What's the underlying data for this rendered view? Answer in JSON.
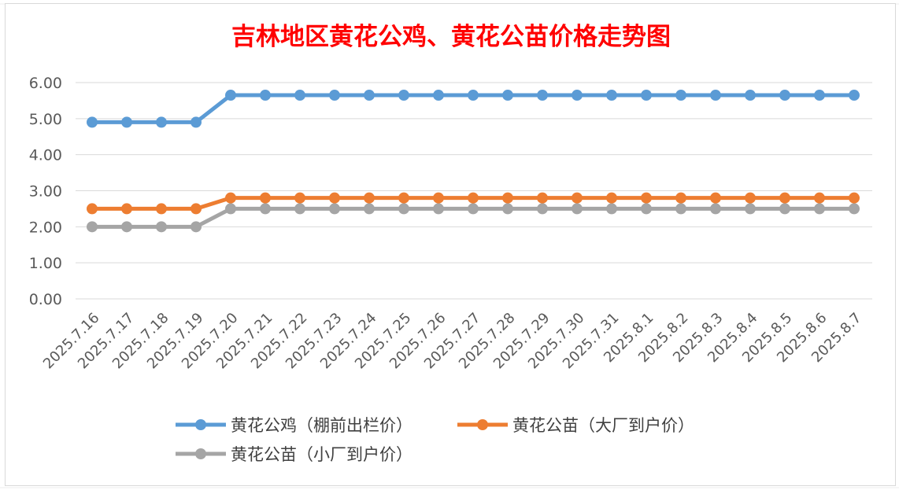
{
  "chart_data": {
    "type": "line",
    "title": "吉林地区黄花公鸡、黄花公苗价格走势图",
    "xlabel": "",
    "ylabel": "",
    "ylim": [
      0,
      6
    ],
    "yticks": [
      "0.00",
      "1.00",
      "2.00",
      "3.00",
      "4.00",
      "5.00",
      "6.00"
    ],
    "grid": true,
    "legend_position": "bottom",
    "categories": [
      "2025.7.16",
      "2025.7.17",
      "2025.7.18",
      "2025.7.19",
      "2025.7.20",
      "2025.7.21",
      "2025.7.22",
      "2025.7.23",
      "2025.7.24",
      "2025.7.25",
      "2025.7.26",
      "2025.7.27",
      "2025.7.28",
      "2025.7.29",
      "2025.7.30",
      "2025.7.31",
      "2025.8.1",
      "2025.8.2",
      "2025.8.3",
      "2025.8.4",
      "2025.8.5",
      "2025.8.6",
      "2025.8.7"
    ],
    "series": [
      {
        "name": "黄花公鸡（棚前出栏价）",
        "color": "#5b9bd5",
        "values": [
          4.9,
          4.9,
          4.9,
          4.9,
          5.65,
          5.65,
          5.65,
          5.65,
          5.65,
          5.65,
          5.65,
          5.65,
          5.65,
          5.65,
          5.65,
          5.65,
          5.65,
          5.65,
          5.65,
          5.65,
          5.65,
          5.65,
          5.65
        ]
      },
      {
        "name": "黄花公苗（大厂到户价）",
        "color": "#ed7d31",
        "values": [
          2.5,
          2.5,
          2.5,
          2.5,
          2.8,
          2.8,
          2.8,
          2.8,
          2.8,
          2.8,
          2.8,
          2.8,
          2.8,
          2.8,
          2.8,
          2.8,
          2.8,
          2.8,
          2.8,
          2.8,
          2.8,
          2.8,
          2.8
        ]
      },
      {
        "name": "黄花公苗（小厂到户价）",
        "color": "#a5a5a5",
        "values": [
          2.0,
          2.0,
          2.0,
          2.0,
          2.5,
          2.5,
          2.5,
          2.5,
          2.5,
          2.5,
          2.5,
          2.5,
          2.5,
          2.5,
          2.5,
          2.5,
          2.5,
          2.5,
          2.5,
          2.5,
          2.5,
          2.5,
          2.5
        ]
      }
    ]
  },
  "colors": {
    "title": "#ff0000",
    "gridline": "#d9d9d9",
    "tick_text": "#595959",
    "legend_text": "#404040"
  }
}
